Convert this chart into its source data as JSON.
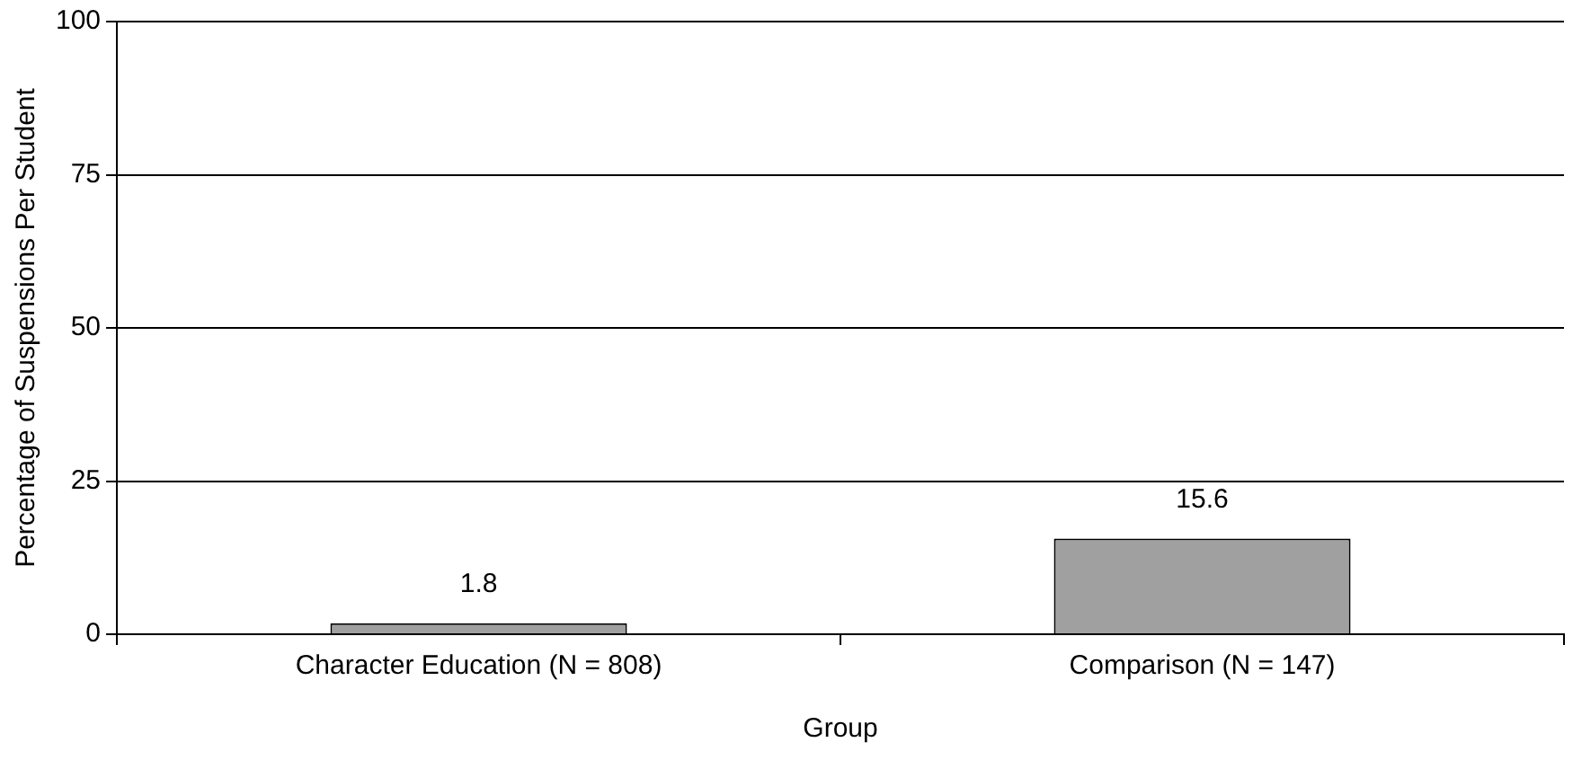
{
  "chart_data": {
    "type": "bar",
    "xlabel": "Group",
    "ylabel": "Percentage of Suspensions Per Student",
    "categories": [
      "Character Education (N = 808)",
      "Comparison (N = 147)"
    ],
    "values": [
      1.8,
      15.6
    ],
    "color": "#a0a0a0",
    "ylim": [
      0,
      100
    ],
    "yticks": [
      0,
      25,
      50,
      75,
      100
    ],
    "grid": "y",
    "legend": false,
    "data_labels": true
  }
}
